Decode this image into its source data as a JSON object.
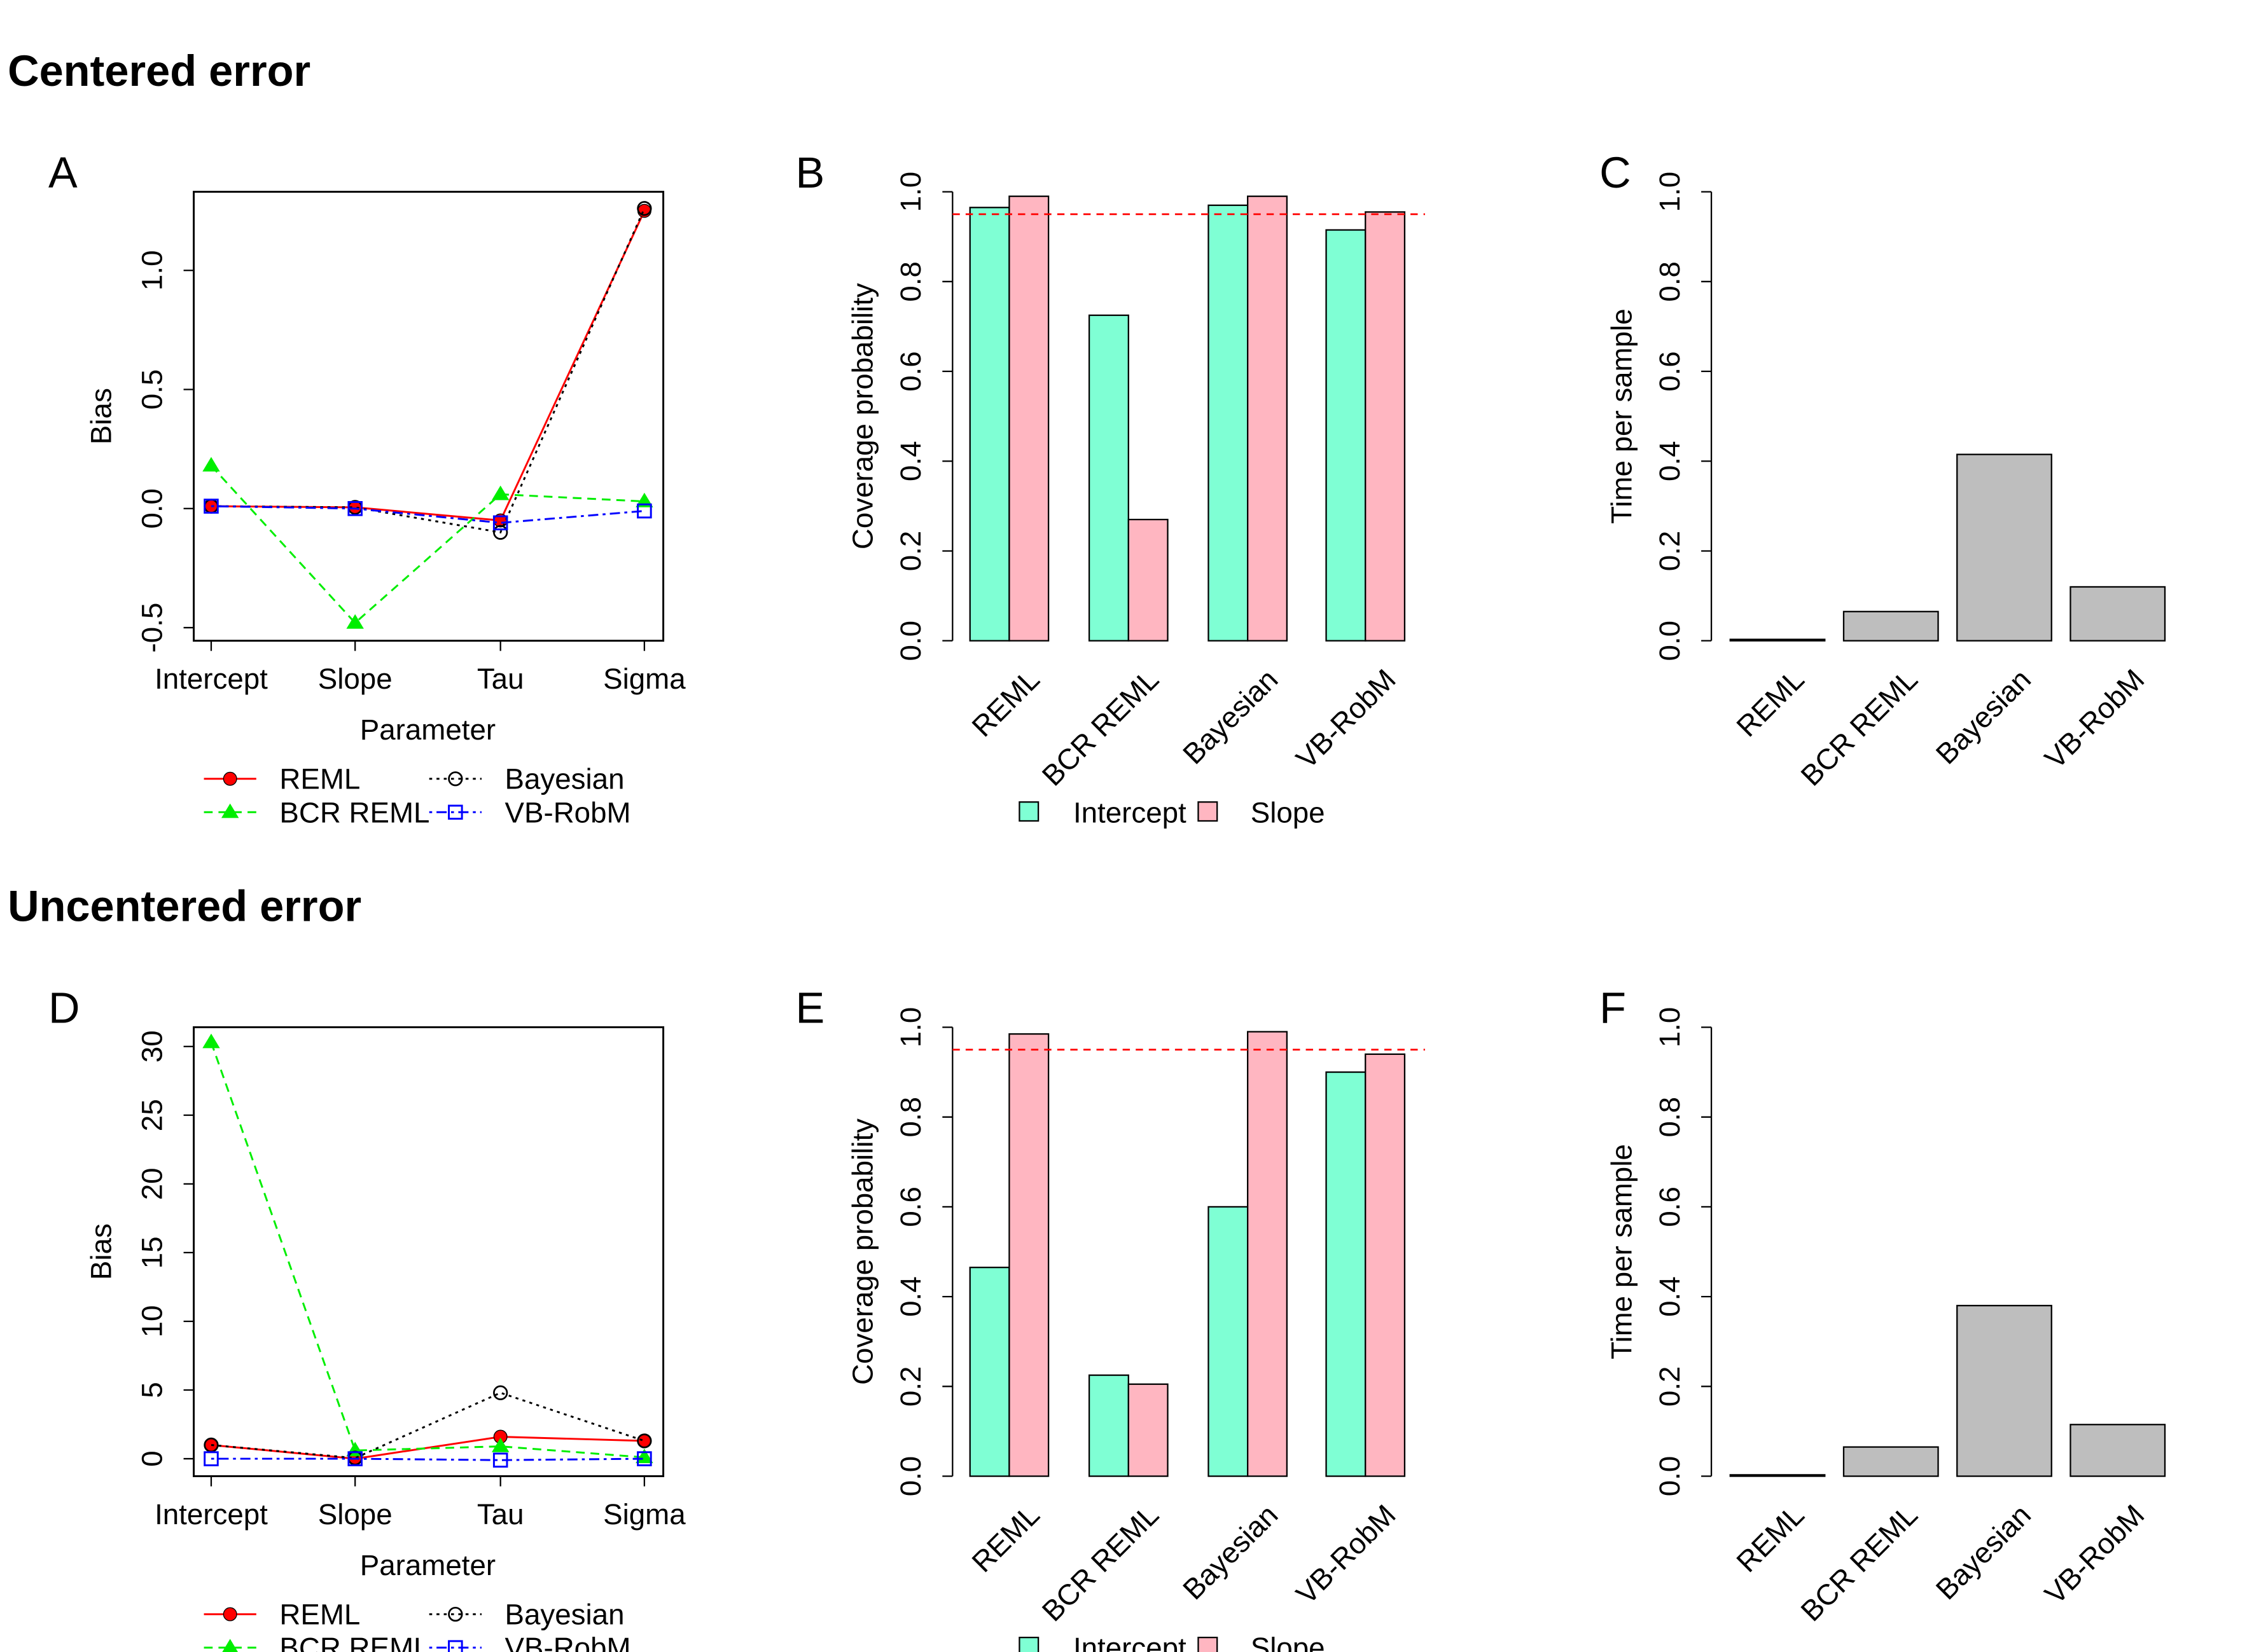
{
  "sections": [
    {
      "title": "Centered error",
      "panels": [
        "A",
        "B",
        "C"
      ]
    },
    {
      "title": "Uncentered error",
      "panels": [
        "D",
        "E",
        "F"
      ]
    }
  ],
  "colors": {
    "REML": "#ff0000",
    "BCR REML": "#00ee00",
    "Bayesian": "#000000",
    "VB-RobM": "#0000ff",
    "Intercept": "#7fffd4",
    "Slope": "#ffb6c1",
    "time_bar": "#bebebe",
    "reference_line": "#ff0000"
  },
  "chart_data": [
    {
      "panel": "A",
      "type": "line",
      "categories": [
        "Intercept",
        "Slope",
        "Tau",
        "Sigma"
      ],
      "xlabel": "Parameter",
      "ylabel": "Bias",
      "ylim": [
        -0.555,
        1.33
      ],
      "yticks": [
        -0.5,
        0.0,
        0.5,
        1.0
      ],
      "ytick_labels": [
        "-0.5",
        "0.0",
        "0.5",
        "1.0"
      ],
      "series": [
        {
          "name": "REML",
          "values": [
            0.01,
            0.005,
            -0.05,
            1.25
          ],
          "marker": "filled-circle",
          "line": "solid"
        },
        {
          "name": "BCR REML",
          "values": [
            0.18,
            -0.48,
            0.06,
            0.03
          ],
          "marker": "filled-triangle",
          "line": "dashed"
        },
        {
          "name": "Bayesian",
          "values": [
            0.01,
            0.005,
            -0.1,
            1.26
          ],
          "marker": "open-circle",
          "line": "dotted"
        },
        {
          "name": "VB-RobM",
          "values": [
            0.01,
            0.0,
            -0.06,
            -0.01
          ],
          "marker": "open-square",
          "line": "dotdash"
        }
      ],
      "legend": "bottom"
    },
    {
      "panel": "B",
      "type": "bar",
      "categories": [
        "REML",
        "BCR REML",
        "Bayesian",
        "VB-RobM"
      ],
      "ylabel": "Coverage probability",
      "ylim": [
        0,
        1
      ],
      "yticks": [
        0,
        0.2,
        0.4,
        0.6,
        0.8,
        1.0
      ],
      "ytick_labels": [
        "0.0",
        "0.2",
        "0.4",
        "0.6",
        "0.8",
        "1.0"
      ],
      "reference_line": 0.95,
      "series": [
        {
          "name": "Intercept",
          "values": [
            0.965,
            0.725,
            0.97,
            0.915
          ]
        },
        {
          "name": "Slope",
          "values": [
            0.99,
            0.27,
            0.99,
            0.955
          ]
        }
      ],
      "legend": "bottom"
    },
    {
      "panel": "C",
      "type": "bar",
      "categories": [
        "REML",
        "BCR REML",
        "Bayesian",
        "VB-RobM"
      ],
      "ylabel": "Time per sample",
      "ylim": [
        0,
        1
      ],
      "yticks": [
        0,
        0.2,
        0.4,
        0.6,
        0.8,
        1.0
      ],
      "ytick_labels": [
        "0.0",
        "0.2",
        "0.4",
        "0.6",
        "0.8",
        "1.0"
      ],
      "values": [
        0.003,
        0.065,
        0.415,
        0.12
      ]
    },
    {
      "panel": "D",
      "type": "line",
      "categories": [
        "Intercept",
        "Slope",
        "Tau",
        "Sigma"
      ],
      "xlabel": "Parameter",
      "ylabel": "Bias",
      "ylim": [
        -1.27,
        31.4
      ],
      "yticks": [
        0,
        5,
        10,
        15,
        20,
        25,
        30
      ],
      "ytick_labels": [
        "0",
        "5",
        "10",
        "15",
        "20",
        "25",
        "30"
      ],
      "series": [
        {
          "name": "REML",
          "values": [
            1.0,
            0.0,
            1.6,
            1.3
          ],
          "marker": "filled-circle",
          "line": "solid"
        },
        {
          "name": "BCR REML",
          "values": [
            30.3,
            0.6,
            0.9,
            0.1
          ],
          "marker": "filled-triangle",
          "line": "dashed"
        },
        {
          "name": "Bayesian",
          "values": [
            1.0,
            0.05,
            4.8,
            1.3
          ],
          "marker": "open-circle",
          "line": "dotted"
        },
        {
          "name": "VB-RobM",
          "values": [
            0.0,
            0.0,
            -0.1,
            0.0
          ],
          "marker": "open-square",
          "line": "dotdash"
        }
      ],
      "legend": "bottom"
    },
    {
      "panel": "E",
      "type": "bar",
      "categories": [
        "REML",
        "BCR REML",
        "Bayesian",
        "VB-RobM"
      ],
      "ylabel": "Coverage probability",
      "ylim": [
        0,
        1
      ],
      "yticks": [
        0,
        0.2,
        0.4,
        0.6,
        0.8,
        1.0
      ],
      "ytick_labels": [
        "0.0",
        "0.2",
        "0.4",
        "0.6",
        "0.8",
        "1.0"
      ],
      "reference_line": 0.95,
      "series": [
        {
          "name": "Intercept",
          "values": [
            0.465,
            0.225,
            0.6,
            0.9
          ]
        },
        {
          "name": "Slope",
          "values": [
            0.985,
            0.205,
            0.99,
            0.94
          ]
        }
      ],
      "legend": "bottom"
    },
    {
      "panel": "F",
      "type": "bar",
      "categories": [
        "REML",
        "BCR REML",
        "Bayesian",
        "VB-RobM"
      ],
      "ylabel": "Time per sample",
      "ylim": [
        0,
        1
      ],
      "yticks": [
        0,
        0.2,
        0.4,
        0.6,
        0.8,
        1.0
      ],
      "ytick_labels": [
        "0.0",
        "0.2",
        "0.4",
        "0.6",
        "0.8",
        "1.0"
      ],
      "values": [
        0.003,
        0.065,
        0.38,
        0.115
      ]
    }
  ]
}
